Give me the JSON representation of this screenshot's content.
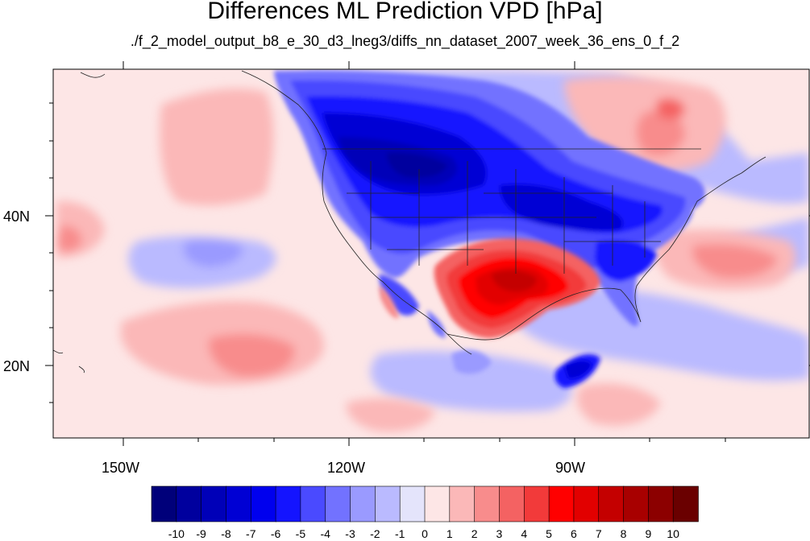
{
  "title": "Differences ML Prediction VPD [hPa]",
  "subtitle": "./f_2_model_output_b8_e_30_d3_lneg3/diffs_nn_dataset_2007_week_36_ens_0_f_2",
  "lon_labels": [
    "150W",
    "120W",
    "90W"
  ],
  "lat_labels": [
    "40N",
    "20N"
  ],
  "colorbar": {
    "labels": [
      "-10",
      "-9",
      "-8",
      "-7",
      "-6",
      "-5",
      "-4",
      "-3",
      "-2",
      "-1",
      "0",
      "1",
      "2",
      "3",
      "4",
      "5",
      "6",
      "7",
      "8",
      "9",
      "10"
    ],
    "colors": [
      "#00007a",
      "#00009e",
      "#0000b8",
      "#0000d4",
      "#0000ee",
      "#1414ff",
      "#4a4aff",
      "#7272ff",
      "#9a9aff",
      "#babaff",
      "#e4e4fb",
      "#fde6e6",
      "#fbb8b8",
      "#f88c8c",
      "#f46262",
      "#f23a3a",
      "#ff0000",
      "#e20000",
      "#c40000",
      "#a80000",
      "#8c0000",
      "#6a0000"
    ]
  },
  "colors": {
    "land_outline": "#222222",
    "frame": "#000000"
  }
}
